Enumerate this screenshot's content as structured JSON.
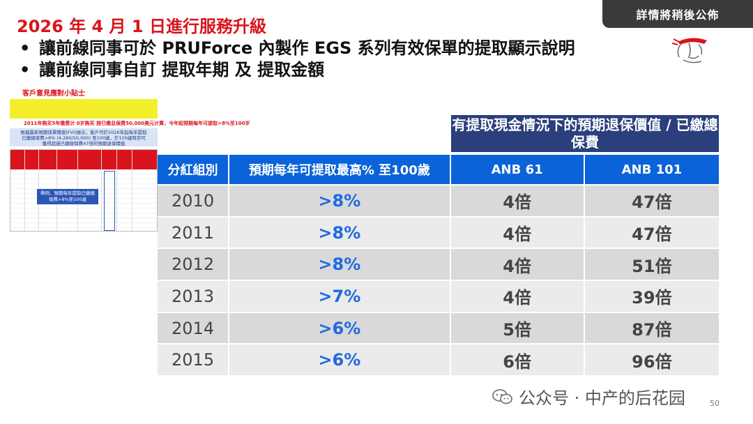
{
  "header": {
    "title": "2026 年 4 月 1 日進行服務升級",
    "notice": "詳情將稍後公佈",
    "bullets": [
      "讓前線同事可於 PRUForce 內製作 EGS 系列有效保單的提取顯示說明",
      "讓前線同事自訂 提取年期 及 提取金額"
    ]
  },
  "thumbnail": {
    "heading": "客戶意見應對小貼士",
    "red_line": "2011年购买5年缴费计 0岁购买 按已缴总保费50,000美元计算，今年起预期每年可提取>8%至100岁",
    "blue_box": "根據最新預期保單價值(FVI)展示，客戶可於2026年起每年提取已繳總保費>8% (4,260/50,000) 至100歲，於100歲時亦可獲得超過已繳總保費47倍的預期退保價值",
    "callout": "舉例，預期每年提取已繳總保費>8%至100歲"
  },
  "table": {
    "group_header": "有提取現金情況下的預期退保價值 / 已繳總保費",
    "columns": [
      "分紅組別",
      "預期每年可提取最高% 至100歲",
      "ANB 61",
      "ANB 101"
    ],
    "rows": [
      {
        "year": "2010",
        "pct": ">8%",
        "anb61": "4倍",
        "anb101": "47倍"
      },
      {
        "year": "2011",
        "pct": ">8%",
        "anb61": "4倍",
        "anb101": "47倍"
      },
      {
        "year": "2012",
        "pct": ">8%",
        "anb61": "4倍",
        "anb101": "51倍"
      },
      {
        "year": "2013",
        "pct": ">7%",
        "anb61": "4倍",
        "anb101": "39倍"
      },
      {
        "year": "2014",
        "pct": ">6%",
        "anb61": "5倍",
        "anb101": "87倍"
      },
      {
        "year": "2015",
        "pct": ">6%",
        "anb61": "6倍",
        "anb101": "96倍"
      }
    ]
  },
  "watermark": "公众号 · 中产的后花园",
  "page_number": "50",
  "colors": {
    "title_red": "#d9141c",
    "header_blue": "#0a63d8",
    "navy": "#2a3f7c",
    "pct_blue": "#1f6be0"
  }
}
